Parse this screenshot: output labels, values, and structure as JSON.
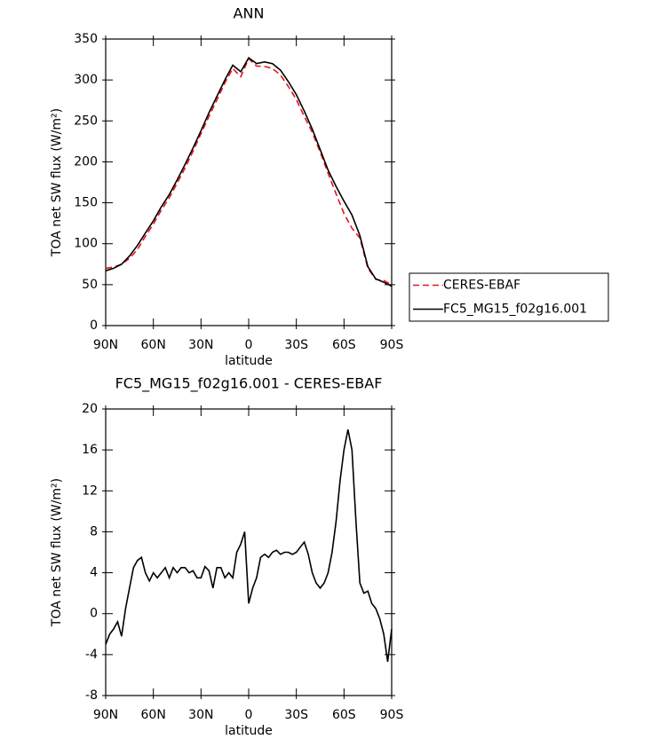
{
  "chart_data": [
    {
      "type": "line",
      "title": "ANN",
      "x_label": "latitude",
      "y_label": "TOA net SW flux (W/m²)",
      "xlim": [
        90,
        -90
      ],
      "ylim": [
        0,
        350
      ],
      "xticks": [
        {
          "value": 90,
          "label": "90N"
        },
        {
          "value": 60,
          "label": "60N"
        },
        {
          "value": 30,
          "label": "30N"
        },
        0,
        {
          "value": -30,
          "label": "30S"
        },
        {
          "value": -60,
          "label": "60S"
        },
        {
          "value": -90,
          "label": "90S"
        }
      ],
      "yticks": [
        0,
        50,
        100,
        150,
        200,
        250,
        300,
        350
      ],
      "legend": "outside right",
      "x": [
        90,
        85,
        80,
        75,
        70,
        65,
        60,
        55,
        50,
        45,
        40,
        35,
        30,
        25,
        20,
        15,
        10,
        5,
        0,
        -5,
        -10,
        -15,
        -20,
        -25,
        -30,
        -35,
        -40,
        -45,
        -50,
        -55,
        -60,
        -65,
        -70,
        -75,
        -80,
        -85,
        -90
      ],
      "series": [
        {
          "name": "CERES-EBAF",
          "color": "#e8141c",
          "dash": true,
          "values": [
            70,
            71.5,
            75,
            82,
            93,
            109,
            124,
            141,
            156,
            174,
            192.5,
            213,
            234.5,
            255.5,
            275.5,
            296.5,
            314,
            304,
            326,
            317,
            316.5,
            314,
            306,
            292,
            276,
            255.5,
            236,
            212,
            186,
            161,
            137,
            119,
            107,
            70,
            56.5,
            55,
            50
          ]
        },
        {
          "name": "FC5_MG15_f02g16.001",
          "color": "#000000",
          "dash": false,
          "values": [
            67,
            70,
            75,
            85,
            98,
            113,
            128,
            145,
            160,
            178,
            197,
            217,
            238,
            260,
            280,
            300,
            318,
            310,
            327,
            320,
            322,
            320,
            312,
            298,
            282,
            262,
            240,
            215,
            190,
            170,
            152,
            135,
            110,
            72,
            57,
            53,
            48
          ]
        }
      ]
    },
    {
      "type": "line",
      "title": "FC5_MG15_f02g16.001 - CERES-EBAF",
      "x_label": "latitude",
      "y_label": "TOA net SW flux (W/m²)",
      "xlim": [
        90,
        -90
      ],
      "ylim": [
        -8,
        20
      ],
      "xticks": [
        {
          "value": 90,
          "label": "90N"
        },
        {
          "value": 60,
          "label": "60N"
        },
        {
          "value": 30,
          "label": "30N"
        },
        0,
        {
          "value": -30,
          "label": "30S"
        },
        {
          "value": -60,
          "label": "60S"
        },
        {
          "value": -90,
          "label": "90S"
        }
      ],
      "yticks": [
        -8,
        -4,
        0,
        4,
        8,
        12,
        16,
        20
      ],
      "x": [
        90,
        87.5,
        85,
        82.5,
        80,
        77.5,
        75,
        72.5,
        70,
        67.5,
        65,
        62.5,
        60,
        57.5,
        55,
        52.5,
        50,
        47.5,
        45,
        42.5,
        40,
        37.5,
        35,
        32.5,
        30,
        27.5,
        25,
        22.5,
        20,
        17.5,
        15,
        12.5,
        10,
        7.5,
        5,
        2.5,
        0,
        -2.5,
        -5,
        -7.5,
        -10,
        -12.5,
        -15,
        -17.5,
        -20,
        -22.5,
        -25,
        -27.5,
        -30,
        -32.5,
        -35,
        -37.5,
        -40,
        -42.5,
        -45,
        -47.5,
        -50,
        -52.5,
        -55,
        -57.5,
        -60,
        -62.5,
        -65,
        -67.5,
        -70,
        -72.5,
        -75,
        -77.5,
        -80,
        -82.5,
        -85,
        -87.5,
        -90
      ],
      "series": [
        {
          "name": "FC5_MG15_f02g16.001",
          "color": "#000000",
          "dash": false,
          "values": [
            -3,
            -2,
            -1.5,
            -0.8,
            -2.2,
            0.5,
            2.5,
            4.5,
            5.2,
            5.5,
            4,
            3.2,
            4,
            3.5,
            4,
            4.5,
            3.5,
            4.5,
            4,
            4.5,
            4.5,
            4,
            4.2,
            3.5,
            3.5,
            4.6,
            4.2,
            2.5,
            4.5,
            4.5,
            3.5,
            4,
            3.5,
            6,
            6.8,
            8,
            1,
            2.5,
            3.5,
            5.5,
            5.8,
            5.5,
            6,
            6.2,
            5.8,
            6,
            6,
            5.8,
            6,
            6.5,
            7,
            5.8,
            4,
            3,
            2.5,
            3,
            4,
            6,
            9,
            13,
            16,
            18,
            16,
            9,
            3,
            2,
            2.2,
            1,
            0.5,
            -0.5,
            -2,
            -4.7,
            -1.5
          ]
        }
      ]
    }
  ]
}
